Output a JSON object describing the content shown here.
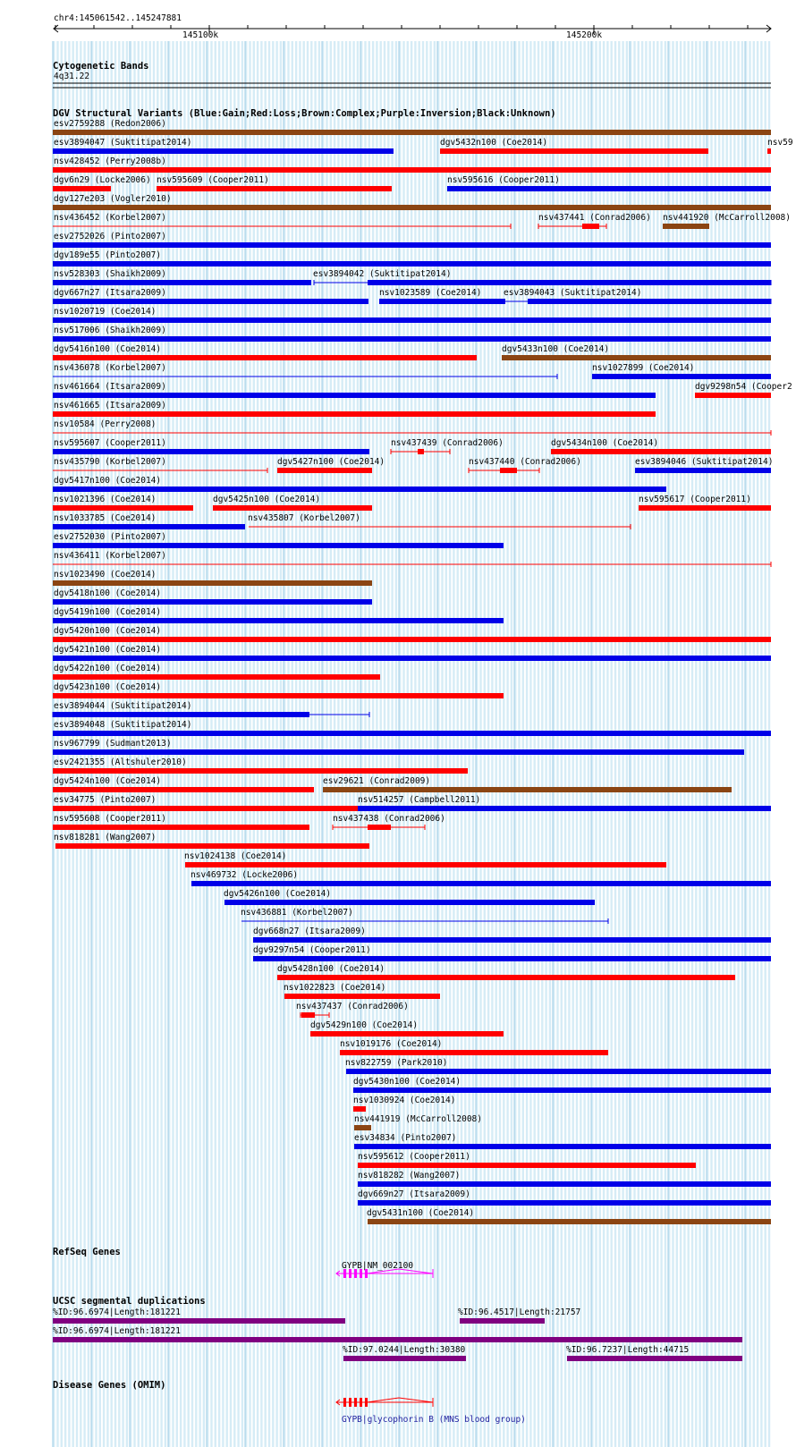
{
  "ruler": {
    "location": "chr4:145061542..145247881",
    "ticks": [
      "145100k",
      "145200k"
    ]
  },
  "cytoband": {
    "title": "Cytogenetic Bands",
    "band": "4q31.22"
  },
  "dgv": {
    "title": "DGV Structural Variants (Blue:Gain;Red:Loss;Brown:Complex;Purple:Inversion;Black:Unknown)",
    "colors": {
      "gain": "#0000e8",
      "loss": "#ff0000",
      "complex": "#8b4513",
      "inversion": "#800080",
      "unknown": "#000000"
    },
    "features": [
      {
        "label": "esv2759288 (Redon2006)",
        "color": "complex"
      },
      {
        "label": "esv3894047 (Suktitipat2014)",
        "color": "gain"
      },
      {
        "label": "dgv5432n100 (Coe2014)",
        "color": "loss"
      },
      {
        "label": "nsv59",
        "color": "loss"
      },
      {
        "label": "nsv428452 (Perry2008b)",
        "color": "loss"
      },
      {
        "label": "dgv6n29 (Locke2006)",
        "color": "loss"
      },
      {
        "label": "nsv595609 (Cooper2011)",
        "color": "loss"
      },
      {
        "label": "nsv595616 (Cooper2011)",
        "color": "gain"
      },
      {
        "label": "dgv127e203 (Vogler2010)",
        "color": "complex"
      },
      {
        "label": "nsv436452 (Korbel2007)",
        "color": "loss"
      },
      {
        "label": "nsv437441 (Conrad2006)",
        "color": "loss"
      },
      {
        "label": "nsv441920 (McCarroll2008)",
        "color": "complex"
      },
      {
        "label": "esv2752026 (Pinto2007)",
        "color": "gain"
      },
      {
        "label": "dgv189e55 (Pinto2007)",
        "color": "gain"
      },
      {
        "label": "nsv528303 (Shaikh2009)",
        "color": "gain"
      },
      {
        "label": "esv3894042 (Suktitipat2014)",
        "color": "gain"
      },
      {
        "label": "dgv667n27 (Itsara2009)",
        "color": "gain"
      },
      {
        "label": "nsv1023589 (Coe2014)",
        "color": "gain"
      },
      {
        "label": "esv3894043 (Suktitipat2014)",
        "color": "gain"
      },
      {
        "label": "nsv1020719 (Coe2014)",
        "color": "gain"
      },
      {
        "label": "nsv517006 (Shaikh2009)",
        "color": "gain"
      },
      {
        "label": "dgv5416n100 (Coe2014)",
        "color": "loss"
      },
      {
        "label": "dgv5433n100 (Coe2014)",
        "color": "complex"
      },
      {
        "label": "nsv436078 (Korbel2007)",
        "color": "gain"
      },
      {
        "label": "nsv1027899 (Coe2014)",
        "color": "gain"
      },
      {
        "label": "nsv461664 (Itsara2009)",
        "color": "gain"
      },
      {
        "label": "dgv9298n54 (Cooper2",
        "color": "loss"
      },
      {
        "label": "nsv461665 (Itsara2009)",
        "color": "loss"
      },
      {
        "label": "nsv10584 (Perry2008)",
        "color": "loss"
      },
      {
        "label": "nsv595607 (Cooper2011)",
        "color": "gain"
      },
      {
        "label": "nsv437439 (Conrad2006)",
        "color": "loss"
      },
      {
        "label": "dgv5434n100 (Coe2014)",
        "color": "loss"
      },
      {
        "label": "nsv435790 (Korbel2007)",
        "color": "loss"
      },
      {
        "label": "dgv5427n100 (Coe2014)",
        "color": "loss"
      },
      {
        "label": "nsv437440 (Conrad2006)",
        "color": "loss"
      },
      {
        "label": "esv3894046 (Suktitipat2014)",
        "color": "gain"
      },
      {
        "label": "dgv5417n100 (Coe2014)",
        "color": "gain"
      },
      {
        "label": "nsv1021396 (Coe2014)",
        "color": "loss"
      },
      {
        "label": "dgv5425n100 (Coe2014)",
        "color": "loss"
      },
      {
        "label": "nsv595617 (Cooper2011)",
        "color": "loss"
      },
      {
        "label": "nsv1033785 (Coe2014)",
        "color": "gain"
      },
      {
        "label": "nsv435807 (Korbel2007)",
        "color": "loss"
      },
      {
        "label": "esv2752030 (Pinto2007)",
        "color": "gain"
      },
      {
        "label": "nsv436411 (Korbel2007)",
        "color": "loss"
      },
      {
        "label": "nsv1023490 (Coe2014)",
        "color": "complex"
      },
      {
        "label": "dgv5418n100 (Coe2014)",
        "color": "gain"
      },
      {
        "label": "dgv5419n100 (Coe2014)",
        "color": "gain"
      },
      {
        "label": "dgv5420n100 (Coe2014)",
        "color": "loss"
      },
      {
        "label": "dgv5421n100 (Coe2014)",
        "color": "gain"
      },
      {
        "label": "dgv5422n100 (Coe2014)",
        "color": "loss"
      },
      {
        "label": "dgv5423n100 (Coe2014)",
        "color": "loss"
      },
      {
        "label": "esv3894044 (Suktitipat2014)",
        "color": "gain"
      },
      {
        "label": "esv3894048 (Suktitipat2014)",
        "color": "gain"
      },
      {
        "label": "nsv967799 (Sudmant2013)",
        "color": "gain"
      },
      {
        "label": "esv2421355 (Altshuler2010)",
        "color": "loss"
      },
      {
        "label": "dgv5424n100 (Coe2014)",
        "color": "loss"
      },
      {
        "label": "esv29621 (Conrad2009)",
        "color": "complex"
      },
      {
        "label": "esv34775 (Pinto2007)",
        "color": "loss"
      },
      {
        "label": "nsv514257 (Campbell2011)",
        "color": "gain"
      },
      {
        "label": "nsv595608 (Cooper2011)",
        "color": "loss"
      },
      {
        "label": "nsv437438 (Conrad2006)",
        "color": "loss"
      },
      {
        "label": "nsv818281 (Wang2007)",
        "color": "loss"
      },
      {
        "label": "nsv1024138 (Coe2014)",
        "color": "loss"
      },
      {
        "label": "nsv469732 (Locke2006)",
        "color": "gain"
      },
      {
        "label": "dgv5426n100 (Coe2014)",
        "color": "gain"
      },
      {
        "label": "nsv436881 (Korbel2007)",
        "color": "gain"
      },
      {
        "label": "dgv668n27 (Itsara2009)",
        "color": "gain"
      },
      {
        "label": "dgv9297n54 (Cooper2011)",
        "color": "gain"
      },
      {
        "label": "dgv5428n100 (Coe2014)",
        "color": "loss"
      },
      {
        "label": "nsv1022823 (Coe2014)",
        "color": "loss"
      },
      {
        "label": "nsv437437 (Conrad2006)",
        "color": "loss"
      },
      {
        "label": "dgv5429n100 (Coe2014)",
        "color": "loss"
      },
      {
        "label": "nsv1019176 (Coe2014)",
        "color": "loss"
      },
      {
        "label": "nsv822759 (Park2010)",
        "color": "gain"
      },
      {
        "label": "dgv5430n100 (Coe2014)",
        "color": "gain"
      },
      {
        "label": "nsv1030924 (Coe2014)",
        "color": "loss"
      },
      {
        "label": "nsv441919 (McCarroll2008)",
        "color": "complex"
      },
      {
        "label": "esv34834 (Pinto2007)",
        "color": "gain"
      },
      {
        "label": "nsv595612 (Cooper2011)",
        "color": "loss"
      },
      {
        "label": "nsv818282 (Wang2007)",
        "color": "gain"
      },
      {
        "label": "dgv669n27 (Itsara2009)",
        "color": "gain"
      },
      {
        "label": "dgv5431n100 (Coe2014)",
        "color": "complex"
      }
    ]
  },
  "refseq": {
    "title": "RefSeq Genes",
    "gene_label": "GYPB|NM_002100",
    "color": "#ff00ff"
  },
  "segdup": {
    "title": "UCSC segmental duplications",
    "color": "#800080",
    "features": [
      {
        "label": "%ID:96.6974|Length:181221"
      },
      {
        "label": "%ID:96.4517|Length:21757"
      },
      {
        "label": "%ID:96.6974|Length:181221"
      },
      {
        "label": "%ID:97.0244|Length:30380"
      },
      {
        "label": "%ID:96.7237|Length:44715"
      }
    ]
  },
  "omim": {
    "title": "Disease Genes (OMIM)",
    "gene_label": "GYPB|glycophorin B (MNS blood group)",
    "color": "#ff0000"
  }
}
